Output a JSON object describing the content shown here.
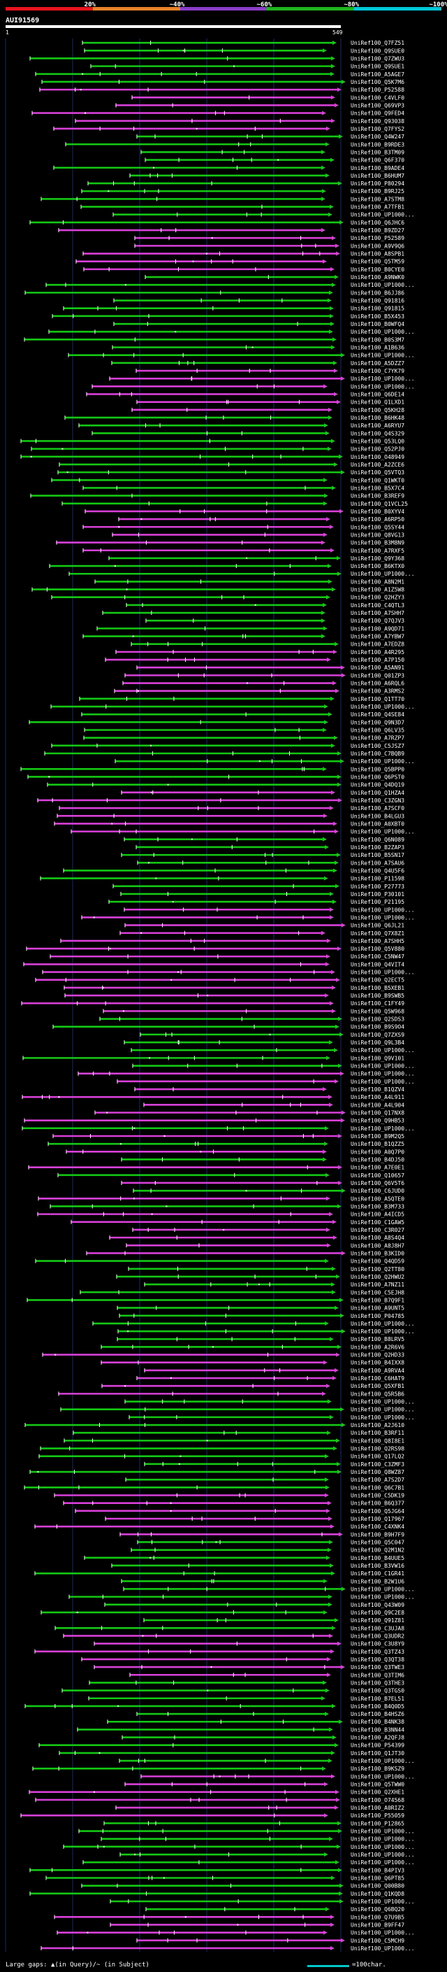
{
  "legend": {
    "segments": [
      {
        "label": "20%",
        "color": "#e8141e"
      },
      {
        "label": "~40%",
        "color": "#e8822a"
      },
      {
        "label": "~60%",
        "color": "#8a3ec8"
      },
      {
        "label": "~80%",
        "color": "#1eb41e"
      },
      {
        "label": "~100%",
        "color": "#00c8d8"
      }
    ]
  },
  "query": {
    "title": "AUI91569",
    "start_tick": "1",
    "end_tick": "549"
  },
  "colors": {
    "green": "#14c814",
    "magenta": "#d840d8",
    "line": "#ffffff",
    "grid": "#1a2a6a"
  },
  "hits": [
    "UniRef100_Q7FZ51",
    "UniRef100_Q9SUE0",
    "UniRef100_Q7ZWU3",
    "UniRef100_Q9SUE1",
    "UniRef100_A5AGE7",
    "UniRef100_Q5K7M6",
    "UniRef100_P52588",
    "UniRef100_C4VLF0",
    "UniRef100_Q69VP3",
    "UniRef100_Q9FED4",
    "UniRef100_Q93038",
    "UniRef100_Q7FYS2",
    "UniRef100_Q4W247",
    "UniRef100_B9RDE3",
    "UniRef100_B3TM09",
    "UniRef100_Q6F370",
    "UniRef100_B9ADE4",
    "UniRef100_B6HUM7",
    "UniRef100_P80294",
    "UniRef100_B9RJ25",
    "UniRef100_A7STM8",
    "UniRef100_A7TFB1",
    "UniRef100_UP1000...",
    "UniRef100_Q6JHC6",
    "UniRef100_B9ZD27",
    "UniRef100_P52589",
    "UniRef100_A9V9Q6",
    "UniRef100_A8SPB1",
    "UniRef100_Q5TM59",
    "UniRef100_B0CYE0",
    "UniRef100_A9NWK0",
    "UniRef100_UP1000...",
    "UniRef100_B6JJ86",
    "UniRef100_Q91816",
    "UniRef100_Q91815",
    "UniRef100_B5X453",
    "UniRef100_B0WFQ4",
    "UniRef100_UP1000...",
    "UniRef100_B0S3M7",
    "UniRef100_A1B636",
    "UniRef100_UP1000...",
    "UniRef100_A5DZZ7",
    "UniRef100_C7YK79",
    "UniRef100_UP1000...",
    "UniRef100_UP1000...",
    "UniRef100_Q6DE14",
    "UniRef100_Q1LXD1",
    "UniRef100_Q5KH28",
    "UniRef100_B6HK48",
    "UniRef100_A6RYU7",
    "UniRef100_Q4S329",
    "UniRef100_Q53LQ0",
    "UniRef100_Q52PJ0",
    "UniRef100_O48949",
    "UniRef100_A2ZCE6",
    "UniRef100_Q5VTQ3",
    "UniRef100_Q1WKT0",
    "UniRef100_B5X7C4",
    "UniRef100_B3REF9",
    "UniRef100_Q1VCL25",
    "UniRef100_B0XYV4",
    "UniRef100_A6RP50",
    "UniRef100_Q5SY44",
    "UniRef100_Q8VG13",
    "UniRef100_B3M8N9",
    "UniRef100_A7RXF5",
    "UniRef100_Q9Y368",
    "UniRef100_B6KTX0",
    "UniRef100_UP1000...",
    "UniRef100_A8N2M1",
    "UniRef100_A1Z5W8",
    "UniRef100_Q2HZY3",
    "UniRef100_C4QTL3",
    "UniRef100_A7SHH7",
    "UniRef100_Q7QJV3",
    "UniRef100_A9QD71",
    "UniRef100_A7YBW7",
    "UniRef100_A7EDZ8",
    "UniRef100_A4R295",
    "UniRef100_A7P150",
    "UniRef100_A5AN91",
    "UniRef100_Q01ZP3",
    "UniRef100_A6RQL6",
    "UniRef100_A3RMS2",
    "UniRef100_Q1TT70",
    "UniRef100_UP1000...",
    "UniRef100_Q4SE84",
    "UniRef100_Q9N3D7",
    "UniRef100_Q6LV35",
    "UniRef100_A7RZP7",
    "UniRef100_C5JSZ7",
    "UniRef100_C7BQB9",
    "UniRef100_UP1000...",
    "UniRef100_Q5BPP0",
    "UniRef100_Q6PST0",
    "UniRef100_Q4DQ19",
    "UniRef100_Q1HZA4",
    "UniRef100_C3ZGN3",
    "UniRef100_A7SCF0",
    "UniRef100_B4LGU3",
    "UniRef100_A0XBT0",
    "UniRef100_UP1000...",
    "UniRef100_Q6N089",
    "UniRef100_B2ZAP3",
    "UniRef100_B5SN17",
    "UniRef100_A7SAU6",
    "UniRef100_Q4U5F6",
    "UniRef100_P11598",
    "UniRef100_P27773",
    "UniRef100_P30101",
    "UniRef100_P21195",
    "UniRef100_UP1000...",
    "UniRef100_UP1000...",
    "UniRef100_Q6JL21",
    "UniRef100_Q7X8Z1",
    "UniRef100_A7SHH5",
    "UniRef100_Q5V880",
    "UniRef100_C5NW47",
    "UniRef100_Q4VIT4",
    "UniRef100_UP1000...",
    "UniRef100_Q2ECT5",
    "UniRef100_B5XEB1",
    "UniRef100_B9SWB5",
    "UniRef100_C1FY49",
    "UniRef100_Q5W968",
    "UniRef100_Q2SDS3",
    "UniRef100_B9S9O4",
    "UniRef100_Q7ZXS9",
    "UniRef100_Q9L3B4",
    "UniRef100_UP1000...",
    "UniRef100_Q9V101",
    "UniRef100_UP1000...",
    "UniRef100_UP1000...",
    "UniRef100_UP1000...",
    "UniRef100_B1QZV4",
    "UniRef100_A4L911",
    "UniRef100_A4L904",
    "UniRef100_Q17NX8",
    "UniRef100_Q9HB53",
    "UniRef100_UP1000...",
    "UniRef100_B9M2Q5",
    "UniRef100_B1QZZ5",
    "UniRef100_A0Q7P0",
    "UniRef100_B4DJ50",
    "UniRef100_A7E0E1",
    "UniRef100_Q10657",
    "UniRef100_Q6V5T6",
    "UniRef100_C6JUD0",
    "UniRef100_A5QTE0",
    "UniRef100_B3M733",
    "UniRef100_A4ICD5",
    "UniRef100_C1GAW5",
    "UniRef100_C3R027",
    "UniRef100_A8S4Q4",
    "UniRef100_A8J8H7",
    "UniRef100_B3KID0",
    "UniRef100_Q4QD59",
    "UniRef100_Q2TT80",
    "UniRef100_Q2HWU2",
    "UniRef100_A7NZ11",
    "UniRef100_C5EJH8",
    "UniRef100_B7Q9F1",
    "UniRef100_A9UNT5",
    "UniRef100_P04785",
    "UniRef100_UP1000...",
    "UniRef100_UP1000...",
    "UniRef100_B8LRV5",
    "UniRef100_A2R6V6",
    "UniRef100_Q2HD33",
    "UniRef100_B4IXX8",
    "UniRef100_A9RVA4",
    "UniRef100_C6HAT9",
    "UniRef100_Q5XFB1",
    "UniRef100_Q5R5B6",
    "UniRef100_UP1000...",
    "UniRef100_UP1000...",
    "UniRef100_UP1000...",
    "UniRef100_A2J610",
    "UniRef100_B3RF11",
    "UniRef100_Q8I8E1",
    "UniRef100_Q2RS98",
    "UniRef100_Q17LQ2",
    "UniRef100_C3ZMF3",
    "UniRef100_Q8WZ87",
    "UniRef100_A7S2D7",
    "UniRef100_Q6C7B1",
    "UniRef100_C5DK19",
    "UniRef100_B6Q377",
    "UniRef100_Q5JG64",
    "UniRef100_Q17967",
    "UniRef100_C4XNK4",
    "UniRef100_B9H7F9",
    "UniRef100_Q5C047",
    "UniRef100_Q2M1N2",
    "UniRef100_B4UUE5",
    "UniRef100_B3VW16",
    "UniRef100_C1GR41",
    "UniRef100_B2W1U6",
    "UniRef100_UP1000...",
    "UniRef100_UP1000...",
    "UniRef100_Q43W09",
    "UniRef100_Q9C2E8",
    "UniRef100_Q91Z81",
    "UniRef100_C3UJA8",
    "UniRef100_Q3UDR2",
    "UniRef100_C3U8Y9",
    "UniRef100_Q3TZ43",
    "UniRef100_Q3QT38",
    "UniRef100_Q3TWE3",
    "UniRef100_Q3TIM6",
    "UniRef100_Q3THE3",
    "UniRef100_Q3TGS0",
    "UniRef100_B7EL51",
    "UniRef100_B4Q0D5",
    "UniRef100_B4HSZ6",
    "UniRef100_B4NK38",
    "UniRef100_B3NN44",
    "UniRef100_A2QFJ8",
    "UniRef100_P54399",
    "UniRef100_Q1JT30",
    "UniRef100_UP1000...",
    "UniRef100_B9KSZ9",
    "UniRef100_UP1000...",
    "UniRef100_Q5TWW0",
    "UniRef100_Q2XHE1",
    "UniRef100_O74568",
    "UniRef100_A0RIZ2",
    "UniRef100_P55059",
    "UniRef100_P12865",
    "UniRef100_UP1000...",
    "UniRef100_UP1000...",
    "UniRef100_UP1000...",
    "UniRef100_UP1000...",
    "UniRef100_UP1000...",
    "UniRef100_B4PIV3",
    "UniRef100_Q6PT85",
    "UniRef100_Q00B80",
    "UniRef100_Q1KQD8",
    "UniRef100_UP1000...",
    "UniRef100_Q6BQ20",
    "UniRef100_Q7U9B5",
    "UniRef100_B9FF47",
    "UniRef100_UP1000...",
    "UniRef100_C5MCH9",
    "UniRef100_UP1000..."
  ],
  "footer": {
    "left_text": "Large gaps: ▲(in Query)/~ (in Subject)",
    "right_text": "=100char."
  }
}
